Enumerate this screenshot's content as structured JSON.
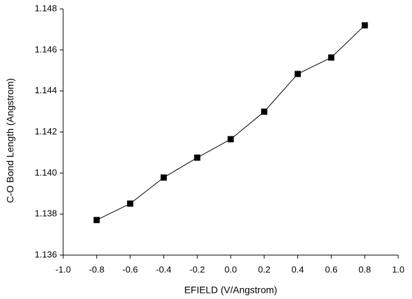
{
  "chart_data": {
    "type": "line",
    "x_label": "EFIELD (V/Angstrom)",
    "y_label": "C-O Bond Length (Angstrom)",
    "x": [
      -0.8,
      -0.6,
      -0.4,
      -0.2,
      0.0,
      0.2,
      0.4,
      0.6,
      0.8
    ],
    "series": [
      {
        "color": "#000000",
        "values": [
          1.13771,
          1.13851,
          1.13978,
          1.14075,
          1.14165,
          1.14299,
          1.14483,
          1.14563,
          1.1472
        ]
      }
    ],
    "xlim": [
      -1,
      1
    ],
    "xticks": [
      {
        "value": -1,
        "label": "-1.0"
      },
      -0.8,
      -0.6,
      -0.4,
      -0.2,
      {
        "value": 0,
        "label": "0.0"
      },
      0.2,
      0.4,
      0.6,
      0.8,
      {
        "value": 1,
        "label": "1.0"
      }
    ],
    "ylim": [
      1.136,
      1.148
    ],
    "yticks": [
      1.136,
      1.138,
      {
        "value": 1.14,
        "label": "1.140"
      },
      1.142,
      1.144,
      1.146,
      1.148
    ],
    "marker": "square"
  }
}
